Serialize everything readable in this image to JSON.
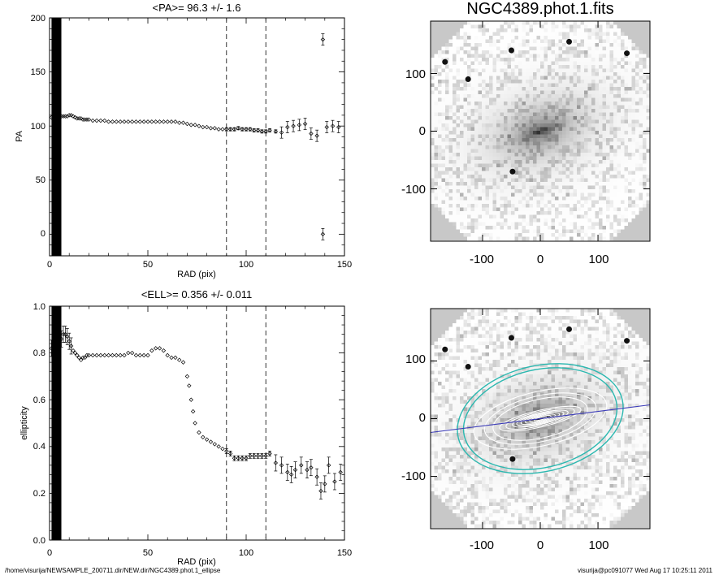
{
  "chart_data": [
    {
      "type": "scatter",
      "title": "<PA>=  96.3 +/-   1.6",
      "xlabel": "RAD (pix)",
      "ylabel": "PA",
      "xlim": [
        0,
        150
      ],
      "ylim": [
        -20,
        200
      ],
      "xticks": [
        "0",
        "50",
        "100",
        "150"
      ],
      "yticks": [
        "0",
        "50",
        "100",
        "150",
        "200"
      ],
      "dashed_x": [
        90,
        110
      ],
      "shaded_x": [
        1,
        6
      ],
      "series": [
        {
          "points": [
            [
              1,
              108
            ],
            [
              2,
              108
            ],
            [
              3,
              109
            ],
            [
              4,
              109
            ],
            [
              5,
              109
            ],
            [
              6,
              109
            ],
            [
              7,
              109
            ],
            [
              8,
              109
            ],
            [
              9,
              109
            ],
            [
              10,
              110
            ],
            [
              11,
              110
            ],
            [
              12,
              109
            ],
            [
              13,
              108
            ],
            [
              14,
              107
            ],
            [
              15,
              107
            ],
            [
              16,
              107
            ],
            [
              17,
              106
            ],
            [
              18,
              106
            ],
            [
              19,
              106
            ],
            [
              20,
              106
            ],
            [
              22,
              105
            ],
            [
              24,
              105
            ],
            [
              26,
              105
            ],
            [
              28,
              105
            ],
            [
              30,
              104
            ],
            [
              32,
              104
            ],
            [
              34,
              104
            ],
            [
              36,
              104
            ],
            [
              38,
              104
            ],
            [
              40,
              104
            ],
            [
              42,
              104
            ],
            [
              44,
              104
            ],
            [
              46,
              104
            ],
            [
              48,
              104
            ],
            [
              50,
              104
            ],
            [
              52,
              104
            ],
            [
              54,
              104
            ],
            [
              56,
              104
            ],
            [
              58,
              104
            ],
            [
              60,
              104
            ],
            [
              62,
              104
            ],
            [
              64,
              104
            ],
            [
              66,
              103
            ],
            [
              68,
              103
            ],
            [
              70,
              102
            ],
            [
              72,
              101
            ],
            [
              74,
              101
            ],
            [
              76,
              100
            ],
            [
              78,
              99
            ],
            [
              80,
              99
            ],
            [
              82,
              98
            ],
            [
              84,
              98
            ],
            [
              86,
              97
            ],
            [
              88,
              97
            ],
            [
              90,
              97
            ],
            [
              92,
              97
            ],
            [
              94,
              97
            ],
            [
              96,
              98
            ],
            [
              98,
              97
            ],
            [
              100,
              97
            ],
            [
              102,
              97
            ],
            [
              104,
              96
            ],
            [
              106,
              96
            ],
            [
              108,
              95
            ],
            [
              110,
              95
            ],
            [
              112,
              96
            ],
            [
              115,
              95
            ],
            [
              118,
              94
            ],
            [
              121,
              99
            ],
            [
              124,
              100
            ],
            [
              127,
              101
            ],
            [
              130,
              102
            ],
            [
              133,
              93
            ],
            [
              136,
              91
            ],
            [
              139,
              180
            ],
            [
              139,
              0
            ],
            [
              141,
              99
            ],
            [
              144,
              100
            ],
            [
              147,
              99
            ]
          ]
        }
      ]
    },
    {
      "type": "scatter",
      "title": "<ELL>= 0.356 +/-  0.011",
      "xlabel": "RAD (pix)",
      "ylabel": "ellipticity",
      "xlim": [
        0,
        150
      ],
      "ylim": [
        0.0,
        1.0
      ],
      "xticks": [
        "0",
        "50",
        "100",
        "150"
      ],
      "yticks": [
        "0.0",
        "0.2",
        "0.4",
        "0.6",
        "0.8",
        "1.0"
      ],
      "dashed_x": [
        90,
        110
      ],
      "shaded_x": [
        1,
        6
      ],
      "series": [
        {
          "points": [
            [
              1,
              0.82
            ],
            [
              2,
              0.83
            ],
            [
              3,
              0.84
            ],
            [
              4,
              0.83
            ],
            [
              5,
              0.85
            ],
            [
              6,
              0.86
            ],
            [
              7,
              0.88
            ],
            [
              8,
              0.88
            ],
            [
              9,
              0.87
            ],
            [
              10,
              0.85
            ],
            [
              11,
              0.83
            ],
            [
              12,
              0.81
            ],
            [
              13,
              0.8
            ],
            [
              14,
              0.79
            ],
            [
              15,
              0.78
            ],
            [
              16,
              0.77
            ],
            [
              17,
              0.78
            ],
            [
              18,
              0.78
            ],
            [
              19,
              0.79
            ],
            [
              20,
              0.79
            ],
            [
              22,
              0.79
            ],
            [
              24,
              0.79
            ],
            [
              26,
              0.79
            ],
            [
              28,
              0.79
            ],
            [
              30,
              0.79
            ],
            [
              32,
              0.79
            ],
            [
              34,
              0.79
            ],
            [
              36,
              0.79
            ],
            [
              38,
              0.79
            ],
            [
              40,
              0.8
            ],
            [
              42,
              0.8
            ],
            [
              44,
              0.79
            ],
            [
              46,
              0.79
            ],
            [
              48,
              0.79
            ],
            [
              50,
              0.79
            ],
            [
              52,
              0.81
            ],
            [
              54,
              0.82
            ],
            [
              56,
              0.82
            ],
            [
              58,
              0.81
            ],
            [
              60,
              0.79
            ],
            [
              62,
              0.78
            ],
            [
              64,
              0.78
            ],
            [
              66,
              0.77
            ],
            [
              68,
              0.76
            ],
            [
              70,
              0.7
            ],
            [
              71,
              0.66
            ],
            [
              72,
              0.6
            ],
            [
              73,
              0.55
            ],
            [
              74,
              0.5
            ],
            [
              76,
              0.46
            ],
            [
              78,
              0.44
            ],
            [
              80,
              0.43
            ],
            [
              82,
              0.42
            ],
            [
              84,
              0.41
            ],
            [
              86,
              0.4
            ],
            [
              88,
              0.39
            ],
            [
              90,
              0.38
            ],
            [
              92,
              0.37
            ],
            [
              94,
              0.35
            ],
            [
              96,
              0.35
            ],
            [
              98,
              0.35
            ],
            [
              100,
              0.35
            ],
            [
              102,
              0.36
            ],
            [
              104,
              0.36
            ],
            [
              106,
              0.36
            ],
            [
              108,
              0.36
            ],
            [
              110,
              0.36
            ],
            [
              112,
              0.37
            ],
            [
              115,
              0.33
            ],
            [
              118,
              0.32
            ],
            [
              121,
              0.29
            ],
            [
              123,
              0.28
            ],
            [
              125,
              0.3
            ],
            [
              128,
              0.32
            ],
            [
              131,
              0.3
            ],
            [
              133,
              0.31
            ],
            [
              136,
              0.27
            ],
            [
              138,
              0.21
            ],
            [
              140,
              0.24
            ],
            [
              142,
              0.32
            ],
            [
              145,
              0.25
            ],
            [
              148,
              0.29
            ]
          ]
        }
      ]
    }
  ],
  "image_panels": [
    {
      "title": "NGC4389.phot.1.fits",
      "xticks": [
        "-100",
        "0",
        "100"
      ],
      "yticks": [
        "100",
        "0",
        "-100"
      ],
      "tick_values": [
        -100,
        0,
        100
      ],
      "range": [
        -190,
        190
      ],
      "overlay": false
    },
    {
      "title": "",
      "xticks": [
        "-100",
        "0",
        "100"
      ],
      "yticks": [
        "100",
        "0",
        "-100"
      ],
      "tick_values": [
        -100,
        0,
        100
      ],
      "range": [
        -190,
        190
      ],
      "overlay": true,
      "major_axis_line_color": "#3a3ab8",
      "ring_color": "#2bb8b0",
      "contour_color": "#ffffff"
    }
  ],
  "footer": {
    "left": "/home/visurija/NEWSAMPLE_200711.dir/NEW.dir/NGC4389.phot.1_ellipse",
    "right": "visurija@pc091077  Wed Aug 17 10:25:11 2011"
  }
}
